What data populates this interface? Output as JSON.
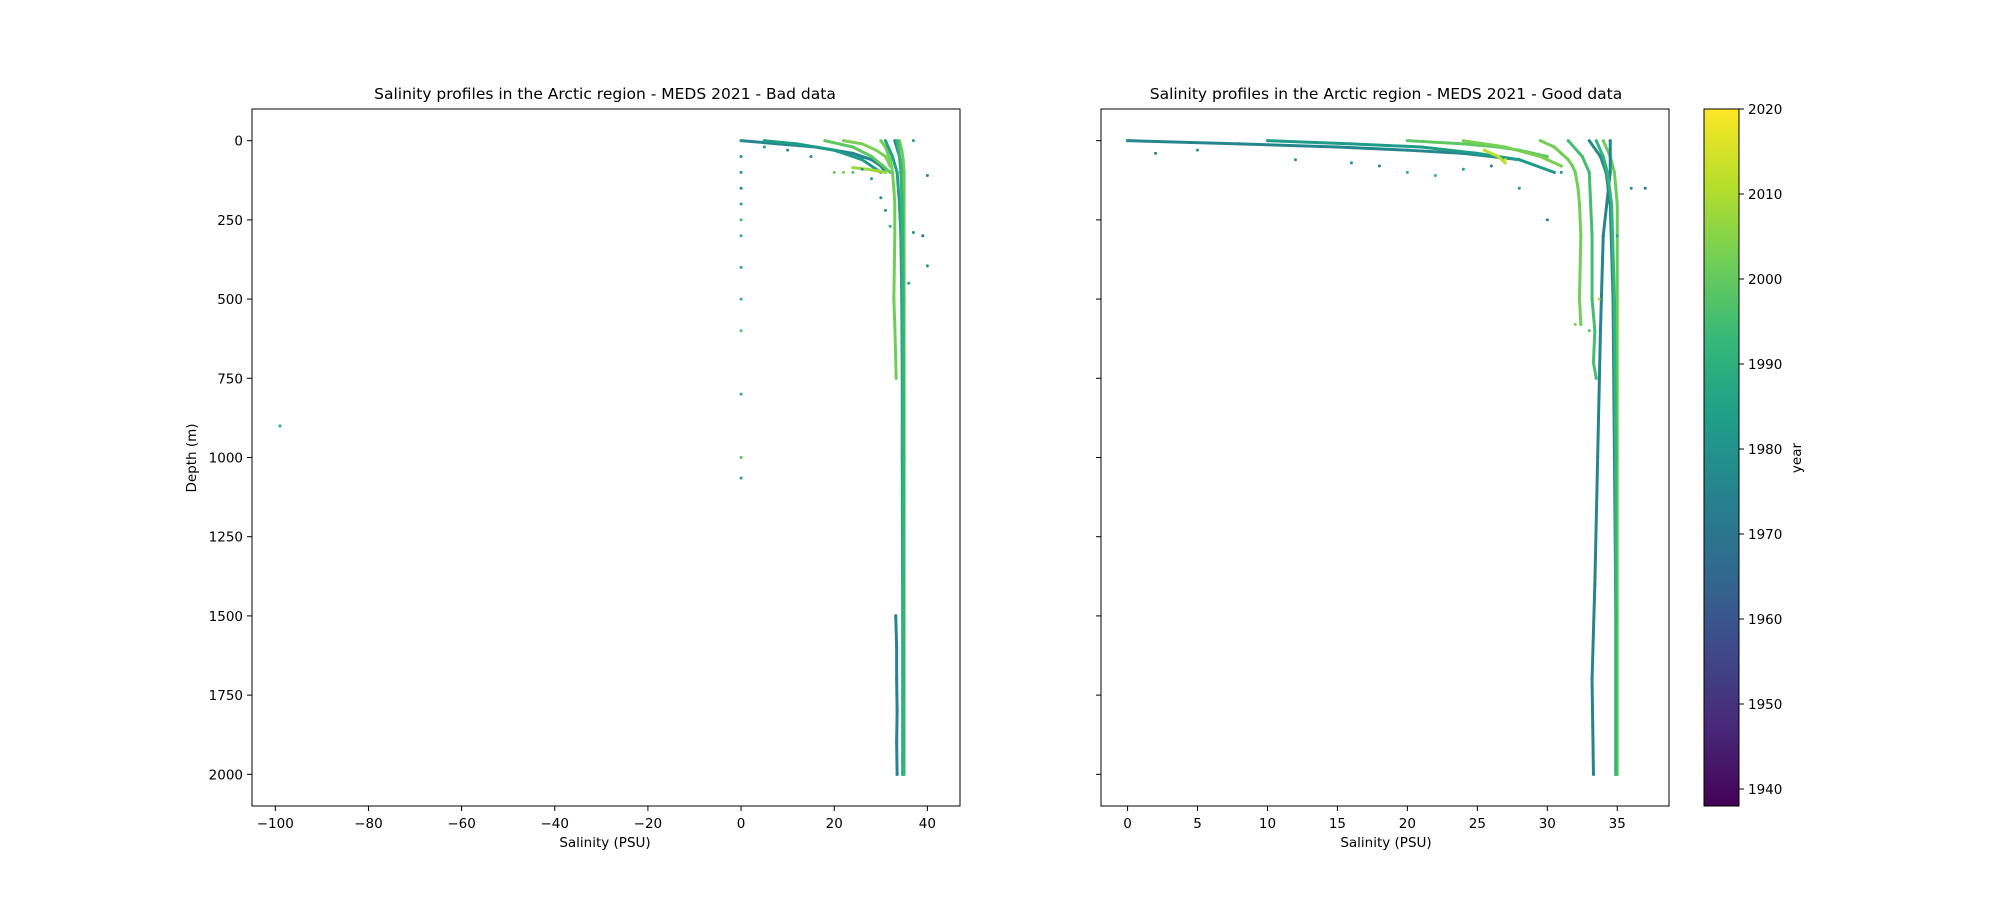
{
  "figure": {
    "background": "#ffffff"
  },
  "colormap": {
    "name": "viridis",
    "label": "year",
    "range": [
      1938,
      2020
    ],
    "ticks": [
      1940,
      1950,
      1960,
      1970,
      1980,
      1990,
      2000,
      2010,
      2020
    ],
    "stops": [
      "#440154",
      "#482878",
      "#3e4989",
      "#31688e",
      "#26828e",
      "#1f9e89",
      "#35b779",
      "#6ece58",
      "#b5de2b",
      "#fde725"
    ]
  },
  "chart_data": [
    {
      "type": "scatter",
      "title": "Salinity profiles in the Arctic region - MEDS 2021 - Bad data",
      "xlabel": "Salinity (PSU)",
      "ylabel": "Depth (m)",
      "xlim": [
        -105,
        47
      ],
      "ylim": [
        2100,
        -100
      ],
      "y_inverted": true,
      "xticks": [
        -100,
        -80,
        -60,
        -40,
        -20,
        0,
        20,
        40
      ],
      "xtick_labels": [
        "−100",
        "−80",
        "−60",
        "−40",
        "−20",
        "0",
        "20",
        "40"
      ],
      "yticks": [
        0,
        250,
        500,
        750,
        1000,
        1250,
        1500,
        1750,
        2000
      ],
      "ytick_labels": [
        "0",
        "250",
        "500",
        "750",
        "1000",
        "1250",
        "1500",
        "1750",
        "2000"
      ],
      "show_ytick_labels": true,
      "grid": false,
      "profiles": [
        {
          "depth": [
            0,
            20,
            40,
            60,
            80,
            100,
            150,
            200,
            300,
            500,
            580,
            750
          ],
          "salinity": [
            30,
            31,
            31.5,
            32,
            32.3,
            32.5,
            32.8,
            33,
            33,
            32.8,
            33,
            33.3
          ],
          "year": 2002
        },
        {
          "depth": [
            0,
            50,
            100,
            200,
            300,
            500,
            750,
            1000,
            1500,
            2000
          ],
          "salinity": [
            31,
            32.5,
            33.5,
            34,
            34.3,
            34.5,
            34.6,
            34.6,
            34.7,
            34.7
          ],
          "year": 1985
        },
        {
          "depth": [
            0,
            50,
            100,
            200,
            500,
            1000,
            1500,
            2000
          ],
          "salinity": [
            33,
            34,
            34.5,
            34.8,
            34.9,
            34.9,
            34.9,
            34.9
          ],
          "year": 1978
        },
        {
          "depth": [
            0,
            30,
            60,
            100,
            200,
            500,
            1000,
            2000
          ],
          "salinity": [
            34,
            34.5,
            34.8,
            35,
            35,
            35,
            35,
            35
          ],
          "year": 2001
        },
        {
          "depth": [
            0,
            50,
            100,
            200,
            500,
            1000,
            2000
          ],
          "salinity": [
            33.5,
            34,
            34.3,
            34.6,
            34.8,
            34.9,
            34.9
          ],
          "year": 1992
        },
        {
          "depth": [
            1500,
            1600,
            1700,
            1800,
            1900,
            2000
          ],
          "salinity": [
            33.2,
            33.4,
            33.4,
            33.5,
            33.4,
            33.5
          ],
          "year": 1975
        },
        {
          "depth": [
            0,
            10,
            20,
            40,
            60,
            80,
            100
          ],
          "salinity": [
            0,
            8,
            16,
            24,
            28,
            30,
            31
          ],
          "year": 1976
        },
        {
          "depth": [
            0,
            10,
            30,
            60,
            100
          ],
          "salinity": [
            5,
            12,
            20,
            26,
            30
          ],
          "year": 1983
        },
        {
          "depth": [
            0,
            20,
            50,
            80,
            100
          ],
          "salinity": [
            18,
            24,
            28,
            30.5,
            32
          ],
          "year": 1999
        },
        {
          "depth": [
            0,
            10,
            30,
            50,
            80
          ],
          "salinity": [
            22,
            26,
            29,
            31,
            32
          ],
          "year": 2003
        },
        {
          "depth": [
            85,
            90,
            95,
            100
          ],
          "salinity": [
            24,
            27,
            29,
            31
          ],
          "year": 2008
        }
      ],
      "points": [
        {
          "x": -99,
          "y": 900,
          "year": 1990
        },
        {
          "x": 0,
          "y": 0,
          "year": 1985
        },
        {
          "x": 0,
          "y": 50,
          "year": 1980
        },
        {
          "x": 0,
          "y": 100,
          "year": 1982
        },
        {
          "x": 0,
          "y": 150,
          "year": 1978
        },
        {
          "x": 0,
          "y": 200,
          "year": 1985
        },
        {
          "x": 0,
          "y": 250,
          "year": 1995
        },
        {
          "x": 0,
          "y": 300,
          "year": 1990
        },
        {
          "x": 0,
          "y": 400,
          "year": 1988
        },
        {
          "x": 0,
          "y": 500,
          "year": 1992
        },
        {
          "x": 0,
          "y": 600,
          "year": 1996
        },
        {
          "x": 0,
          "y": 800,
          "year": 1990
        },
        {
          "x": 0,
          "y": 1000,
          "year": 1998
        },
        {
          "x": 0,
          "y": 1065,
          "year": 1985
        },
        {
          "x": 40,
          "y": 110,
          "year": 1975
        },
        {
          "x": 37,
          "y": 290,
          "year": 1980
        },
        {
          "x": 40,
          "y": 395,
          "year": 1977
        },
        {
          "x": 39,
          "y": 300,
          "year": 1970
        },
        {
          "x": 36,
          "y": 450,
          "year": 1985
        },
        {
          "x": 37,
          "y": 0,
          "year": 1985
        },
        {
          "x": 31,
          "y": 220,
          "year": 1982
        },
        {
          "x": 30,
          "y": 180,
          "year": 1979
        },
        {
          "x": 28,
          "y": 120,
          "year": 1984
        },
        {
          "x": 26,
          "y": 90,
          "year": 1981
        },
        {
          "x": 24,
          "y": 100,
          "year": 1998
        },
        {
          "x": 22,
          "y": 100,
          "year": 2003
        },
        {
          "x": 20,
          "y": 100,
          "year": 2000
        },
        {
          "x": 10,
          "y": 30,
          "year": 1980
        },
        {
          "x": 15,
          "y": 50,
          "year": 1978
        },
        {
          "x": 5,
          "y": 20,
          "year": 1985
        },
        {
          "x": 32,
          "y": 270,
          "year": 1990
        }
      ]
    },
    {
      "type": "scatter",
      "title": "Salinity profiles in the Arctic region - MEDS 2021 - Good data",
      "xlabel": "Salinity (PSU)",
      "ylabel": "",
      "xlim": [
        -1.9,
        38.7
      ],
      "ylim": [
        2100,
        -100
      ],
      "y_inverted": true,
      "xticks": [
        0,
        5,
        10,
        15,
        20,
        25,
        30,
        35
      ],
      "xtick_labels": [
        "0",
        "5",
        "10",
        "15",
        "20",
        "25",
        "30",
        "35"
      ],
      "yticks": [
        0,
        250,
        500,
        750,
        1000,
        1250,
        1500,
        1750,
        2000
      ],
      "show_ytick_labels": false,
      "grid": false,
      "profiles": [
        {
          "depth": [
            0,
            20,
            40,
            60,
            80,
            100,
            150,
            200,
            300,
            500,
            580
          ],
          "salinity": [
            29.5,
            30.5,
            31,
            31.5,
            31.8,
            32,
            32.2,
            32.3,
            32.4,
            32.3,
            32.4
          ],
          "year": 2002
        },
        {
          "depth": [
            0,
            50,
            100,
            200,
            300,
            500,
            600,
            700,
            750
          ],
          "salinity": [
            31.5,
            32.5,
            33,
            33.1,
            33.2,
            33.2,
            33.4,
            33.3,
            33.5
          ],
          "year": 1995
        },
        {
          "depth": [
            0,
            50,
            100,
            200,
            500,
            1000,
            1500,
            2000
          ],
          "salinity": [
            33,
            33.8,
            34.2,
            34.5,
            34.7,
            34.8,
            34.9,
            34.9
          ],
          "year": 1978
        },
        {
          "depth": [
            0,
            50,
            100,
            200,
            500,
            1000,
            1500,
            2000
          ],
          "salinity": [
            34,
            34.5,
            34.8,
            35,
            35,
            35,
            35,
            35
          ],
          "year": 2001
        },
        {
          "depth": [
            0,
            100,
            300,
            600,
            1000,
            1400,
            1700,
            2000
          ],
          "salinity": [
            34.5,
            34.5,
            34,
            33.8,
            33.6,
            33.4,
            33.2,
            33.3
          ],
          "year": 1975
        },
        {
          "depth": [
            0,
            50,
            100,
            200,
            500,
            1000,
            2000
          ],
          "salinity": [
            33.5,
            34,
            34.3,
            34.6,
            34.8,
            34.9,
            34.9
          ],
          "year": 1992
        },
        {
          "depth": [
            0,
            10,
            20,
            30,
            40,
            60
          ],
          "salinity": [
            0,
            8,
            15,
            20,
            24,
            28
          ],
          "year": 1976
        },
        {
          "depth": [
            0,
            10,
            20,
            40,
            60,
            100
          ],
          "salinity": [
            10,
            16,
            21,
            25,
            28,
            30.5
          ],
          "year": 1983
        },
        {
          "depth": [
            0,
            10,
            20,
            30,
            50
          ],
          "salinity": [
            20,
            24,
            26.5,
            28,
            30
          ],
          "year": 1999
        },
        {
          "depth": [
            30,
            50,
            70
          ],
          "salinity": [
            25.5,
            26.5,
            27
          ],
          "year": 2012
        },
        {
          "depth": [
            0,
            20,
            50,
            80
          ],
          "salinity": [
            24,
            27,
            29.5,
            31
          ],
          "year": 2003
        }
      ],
      "points": [
        {
          "x": 0,
          "y": 0,
          "year": 1980
        },
        {
          "x": 2,
          "y": 40,
          "year": 1975
        },
        {
          "x": 5,
          "y": 30,
          "year": 1982
        },
        {
          "x": 12,
          "y": 60,
          "year": 1978
        },
        {
          "x": 18,
          "y": 80,
          "year": 1976
        },
        {
          "x": 24,
          "y": 90,
          "year": 1985
        },
        {
          "x": 26,
          "y": 80,
          "year": 1972
        },
        {
          "x": 28,
          "y": 150,
          "year": 1980
        },
        {
          "x": 30,
          "y": 250,
          "year": 1975
        },
        {
          "x": 36,
          "y": 150,
          "year": 1978
        },
        {
          "x": 37,
          "y": 150,
          "year": 1970
        },
        {
          "x": 35,
          "y": 300,
          "year": 1985
        },
        {
          "x": 33,
          "y": 600,
          "year": 1998
        },
        {
          "x": 32,
          "y": 580,
          "year": 2004
        },
        {
          "x": 33.7,
          "y": 500,
          "year": 2012
        },
        {
          "x": 20,
          "y": 100,
          "year": 1990
        },
        {
          "x": 22,
          "y": 110,
          "year": 1992
        },
        {
          "x": 16,
          "y": 70,
          "year": 1980
        },
        {
          "x": 27,
          "y": 60,
          "year": 2015
        },
        {
          "x": 31,
          "y": 100,
          "year": 1980
        }
      ]
    }
  ]
}
